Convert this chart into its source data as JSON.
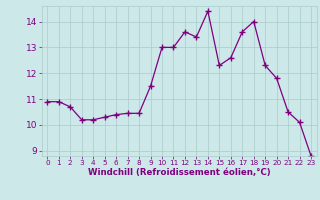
{
  "x": [
    0,
    1,
    2,
    3,
    4,
    5,
    6,
    7,
    8,
    9,
    10,
    11,
    12,
    13,
    14,
    15,
    16,
    17,
    18,
    19,
    20,
    21,
    22,
    23
  ],
  "y": [
    10.9,
    10.9,
    10.7,
    10.2,
    10.2,
    10.3,
    10.4,
    10.45,
    10.45,
    11.5,
    13.0,
    13.0,
    13.6,
    13.4,
    14.4,
    12.3,
    12.6,
    13.6,
    14.0,
    12.3,
    11.8,
    10.5,
    10.1,
    8.8
  ],
  "line_color": "#800080",
  "marker": "+",
  "marker_size": 4,
  "marker_linewidth": 1.0,
  "bg_color": "#cce8e8",
  "grid_color": "#aacccc",
  "xlabel": "Windchill (Refroidissement éolien,°C)",
  "xlabel_color": "#800080",
  "tick_color": "#800080",
  "ylim": [
    8.8,
    14.6
  ],
  "xlim": [
    -0.5,
    23.5
  ],
  "yticks": [
    9,
    10,
    11,
    12,
    13,
    14
  ],
  "xticks": [
    0,
    1,
    2,
    3,
    4,
    5,
    6,
    7,
    8,
    9,
    10,
    11,
    12,
    13,
    14,
    15,
    16,
    17,
    18,
    19,
    20,
    21,
    22,
    23
  ],
  "line_width": 0.9
}
